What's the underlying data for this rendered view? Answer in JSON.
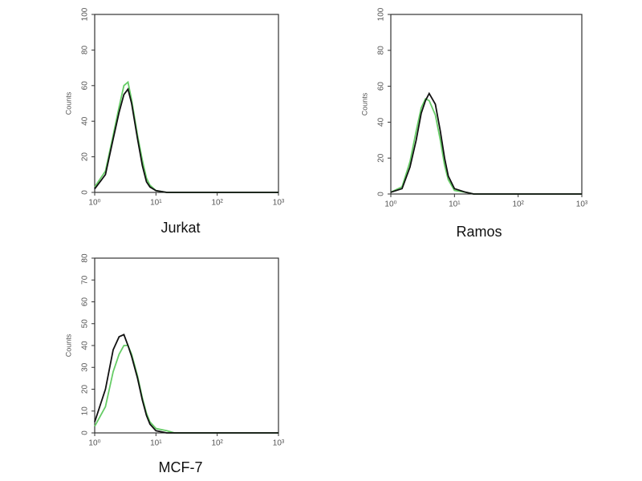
{
  "chart_data": [
    {
      "type": "line",
      "title": "Jurkat",
      "ylabel": "Counts",
      "xscale": "log",
      "x": [
        1,
        1.5,
        2,
        2.5,
        3,
        3.5,
        4,
        5,
        6,
        7,
        8,
        10,
        15,
        20,
        50,
        100,
        1000
      ],
      "series": [
        {
          "color": "#66cc66",
          "values": [
            3,
            12,
            32,
            48,
            60,
            62,
            52,
            32,
            18,
            8,
            4,
            1,
            0,
            0,
            0,
            0,
            0
          ]
        },
        {
          "color": "#111111",
          "values": [
            2,
            10,
            30,
            45,
            55,
            58,
            50,
            30,
            15,
            6,
            3,
            1,
            0,
            0,
            0,
            0,
            0
          ]
        }
      ],
      "xlim": [
        1,
        1000
      ],
      "xticks": [
        {
          "value": 1,
          "label": "10⁰"
        },
        {
          "value": 10,
          "label": "10¹"
        },
        {
          "value": 100,
          "label": "10²"
        },
        {
          "value": 1000,
          "label": "10³"
        }
      ],
      "ylim": [
        0,
        100
      ],
      "yticks": [
        0,
        20,
        40,
        60,
        80,
        100
      ]
    },
    {
      "type": "line",
      "title": "Ramos",
      "ylabel": "Counts",
      "xscale": "log",
      "x": [
        1,
        1.5,
        2,
        2.5,
        3,
        3.5,
        4,
        5,
        6,
        7,
        8,
        10,
        15,
        20,
        50,
        100,
        1000
      ],
      "series": [
        {
          "color": "#66cc66",
          "values": [
            1,
            4,
            18,
            35,
            48,
            53,
            52,
            44,
            30,
            16,
            8,
            2,
            1,
            0,
            0,
            0,
            0
          ]
        },
        {
          "color": "#111111",
          "values": [
            1,
            3,
            15,
            30,
            45,
            52,
            56,
            50,
            35,
            20,
            10,
            3,
            1,
            0,
            0,
            0,
            0
          ]
        }
      ],
      "xlim": [
        1,
        1000
      ],
      "xticks": [
        {
          "value": 1,
          "label": "10⁰"
        },
        {
          "value": 10,
          "label": "10¹"
        },
        {
          "value": 100,
          "label": "10²"
        },
        {
          "value": 1000,
          "label": "10³"
        }
      ],
      "ylim": [
        0,
        100
      ],
      "yticks": [
        0,
        20,
        40,
        60,
        80,
        100
      ]
    },
    {
      "type": "line",
      "title": "MCF-7",
      "ylabel": "Counts",
      "xscale": "log",
      "x": [
        1,
        1.5,
        2,
        2.5,
        3,
        3.5,
        4,
        5,
        6,
        7,
        8,
        10,
        15,
        20,
        50,
        100,
        1000
      ],
      "series": [
        {
          "color": "#66cc66",
          "values": [
            3,
            12,
            28,
            36,
            40,
            40,
            36,
            26,
            16,
            9,
            5,
            2,
            1,
            0,
            0,
            0,
            0
          ]
        },
        {
          "color": "#111111",
          "values": [
            5,
            20,
            38,
            44,
            45,
            40,
            35,
            25,
            15,
            8,
            4,
            1,
            0,
            0,
            0,
            0,
            0
          ]
        }
      ],
      "xlim": [
        1,
        1000
      ],
      "xticks": [
        {
          "value": 1,
          "label": "10⁰"
        },
        {
          "value": 10,
          "label": "10¹"
        },
        {
          "value": 100,
          "label": "10²"
        },
        {
          "value": 1000,
          "label": "10³"
        }
      ],
      "ylim": [
        0,
        80
      ],
      "yticks": [
        0,
        10,
        20,
        30,
        40,
        50,
        60,
        70,
        80
      ]
    }
  ]
}
